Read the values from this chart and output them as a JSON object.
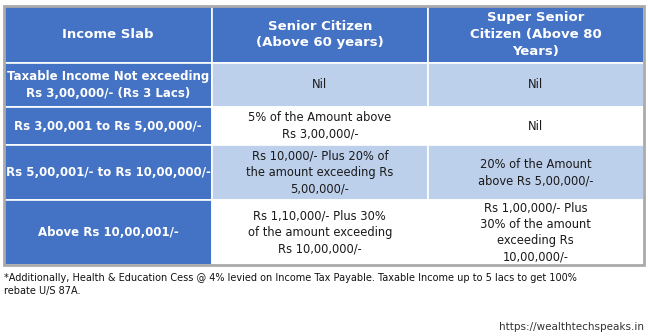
{
  "header_bg": "#4472C4",
  "header_text_color": "#FFFFFF",
  "col0_bg_dark": "#4472C4",
  "col0_text_dark": "#FFFFFF",
  "col0_bg_light": "#4472C4",
  "col0_text_light": "#FFFFFF",
  "col12_bg_dark": "#BDD0EB",
  "col12_bg_light": "#FFFFFF",
  "col12_text_color": "#1A1A1A",
  "outer_bg": "#FFFFFF",
  "border_color": "#FFFFFF",
  "headers": [
    "Income Slab",
    "Senior Citizen\n(Above 60 years)",
    "Super Senior\nCitizen (Above 80\nYears)"
  ],
  "rows": [
    {
      "col0": "Taxable Income Not exceeding\nRs 3,00,000/- (Rs 3 Lacs)",
      "col1": "Nil",
      "col2": "Nil",
      "col12_bg": "#BDD0EB"
    },
    {
      "col0": "Rs 3,00,001 to Rs 5,00,000/-",
      "col1": "5% of the Amount above\nRs 3,00,000/-",
      "col2": "Nil",
      "col12_bg": "#FFFFFF"
    },
    {
      "col0": "Rs 5,00,001/- to Rs 10,00,000/-",
      "col1": "Rs 10,000/- Plus 20% of\nthe amount exceeding Rs\n5,00,000/-",
      "col2": "20% of the Amount\nabove Rs 5,00,000/-",
      "col12_bg": "#BDD0EB"
    },
    {
      "col0": "Above Rs 10,00,001/-",
      "col1": "Rs 1,10,000/- Plus 30%\nof the amount exceeding\nRs 10,00,000/-",
      "col2": "Rs 1,00,000/- Plus\n30% of the amount\nexceeding Rs\n10,00,000/-",
      "col12_bg": "#FFFFFF"
    }
  ],
  "footnote": "*Additionally, Health & Education Cess @ 4% levied on Income Tax Payable. Taxable Income up to 5 lacs to get 100%\nrebate U/S 87A.",
  "website": "https://wealthtechspeaks.in"
}
